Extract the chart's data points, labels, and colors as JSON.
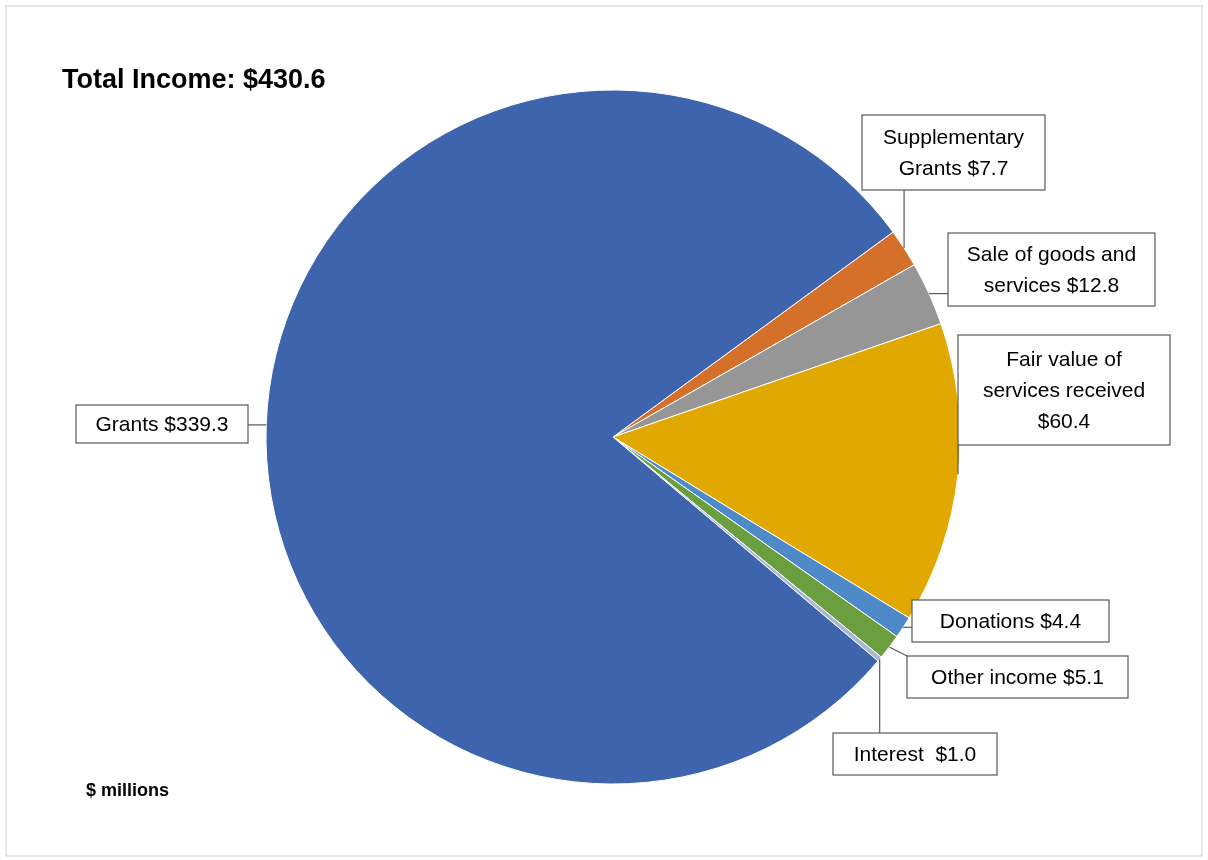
{
  "chart_data": {
    "type": "pie",
    "title": "Total Income: $430.6",
    "categories": [
      "Supplementary Grants",
      "Sale of goods and services",
      "Fair value of services received",
      "Donations",
      "Other income",
      "Interest ",
      "Grants"
    ],
    "values": [
      7.7,
      12.8,
      60.4,
      4.4,
      5.1,
      1.0,
      339.3
    ],
    "value_labels": [
      "$7.7",
      "$12.8",
      "$60.4",
      "$4.4",
      "$5.1",
      "$1.0",
      "$339.3"
    ],
    "colors": [
      "#d4702a",
      "#969696",
      "#e0a800",
      "#4e8ac8",
      "#6a9e3f",
      "#a9b4d8",
      "#3d64ad"
    ],
    "annotations": [
      "$ millions"
    ]
  }
}
